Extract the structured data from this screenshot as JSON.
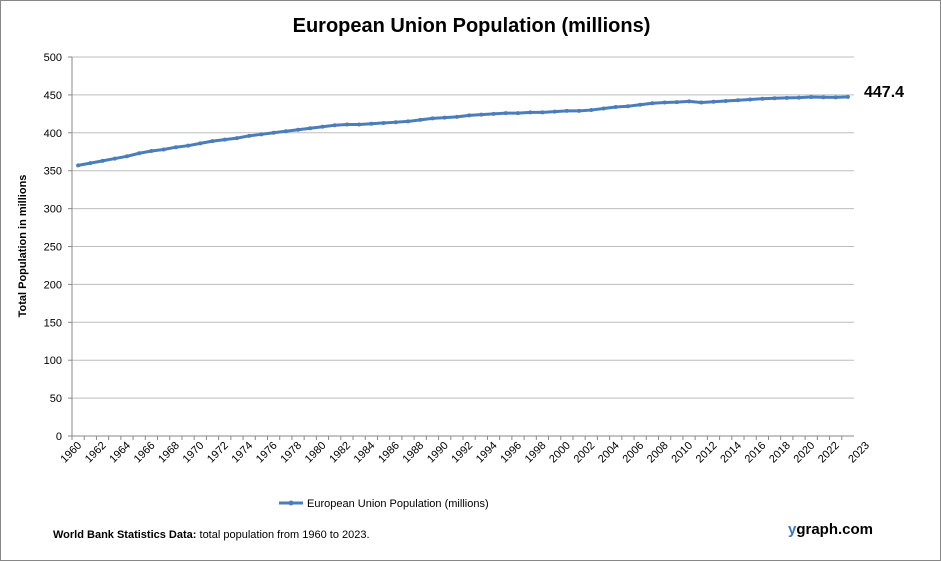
{
  "chart_data": {
    "type": "line",
    "title": "European Union Population (millions)",
    "xlabel": "",
    "ylabel": "Total Population  in millions",
    "ylim": [
      0,
      500
    ],
    "yticks": [
      0,
      50,
      100,
      150,
      200,
      250,
      300,
      350,
      400,
      450,
      500
    ],
    "grid": true,
    "legend_position": "bottom",
    "color": "#4a7ebb",
    "end_label": "447.4",
    "x": [
      1960,
      1961,
      1962,
      1963,
      1964,
      1965,
      1966,
      1967,
      1968,
      1969,
      1970,
      1971,
      1972,
      1973,
      1974,
      1975,
      1976,
      1977,
      1978,
      1979,
      1980,
      1981,
      1982,
      1983,
      1984,
      1985,
      1986,
      1987,
      1988,
      1989,
      1990,
      1991,
      1992,
      1993,
      1994,
      1995,
      1996,
      1997,
      1998,
      1999,
      2000,
      2001,
      2002,
      2003,
      2004,
      2005,
      2006,
      2007,
      2008,
      2009,
      2010,
      2011,
      2012,
      2013,
      2014,
      2015,
      2016,
      2017,
      2018,
      2019,
      2020,
      2021,
      2022,
      2023
    ],
    "series": [
      {
        "name": "European Union Population (millions)",
        "values": [
          357,
          360,
          363,
          366,
          369,
          373,
          376,
          378,
          381,
          383,
          386,
          389,
          391,
          393,
          396,
          398,
          400,
          402,
          404,
          406,
          408,
          410,
          411,
          411,
          412,
          413,
          414,
          415,
          417,
          419,
          420,
          421,
          423,
          424,
          425,
          426,
          426,
          427,
          427,
          428,
          429,
          429,
          430,
          432,
          434,
          435,
          437,
          439,
          440,
          440.5,
          441.5,
          440,
          441,
          442,
          443,
          444,
          445,
          445.5,
          446,
          446.4,
          447.3,
          446.9,
          446.8,
          447.4
        ]
      }
    ]
  },
  "footer": {
    "source_bold": "World Bank Statistics Data:",
    "source_text": " total population from 1960 to 2023."
  },
  "brand": {
    "y": "y",
    "rest": "graph.com"
  }
}
